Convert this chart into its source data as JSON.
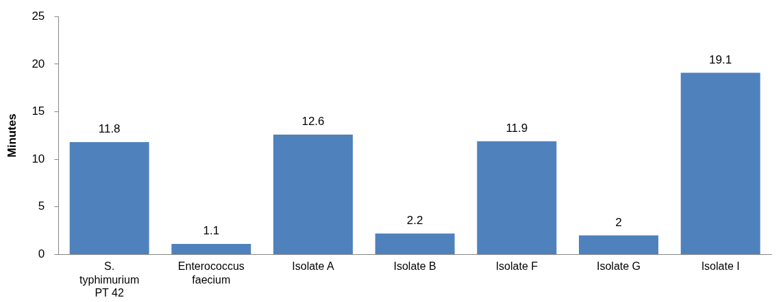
{
  "chart_data": {
    "type": "bar",
    "ylabel": "Minutes",
    "categories": [
      "S. typhimurium PT 42",
      "Enterococcus faecium",
      "Isolate A",
      "Isolate B",
      "Isolate F",
      "Isolate G",
      "Isolate I"
    ],
    "values": [
      11.8,
      1.1,
      12.6,
      2.2,
      11.9,
      2,
      19.1
    ],
    "color": "#4f81bd",
    "ylim": [
      0,
      25
    ],
    "yticks": [
      0,
      5,
      10,
      15,
      20,
      25
    ],
    "data_labels": true,
    "grid": false,
    "legend": false
  }
}
